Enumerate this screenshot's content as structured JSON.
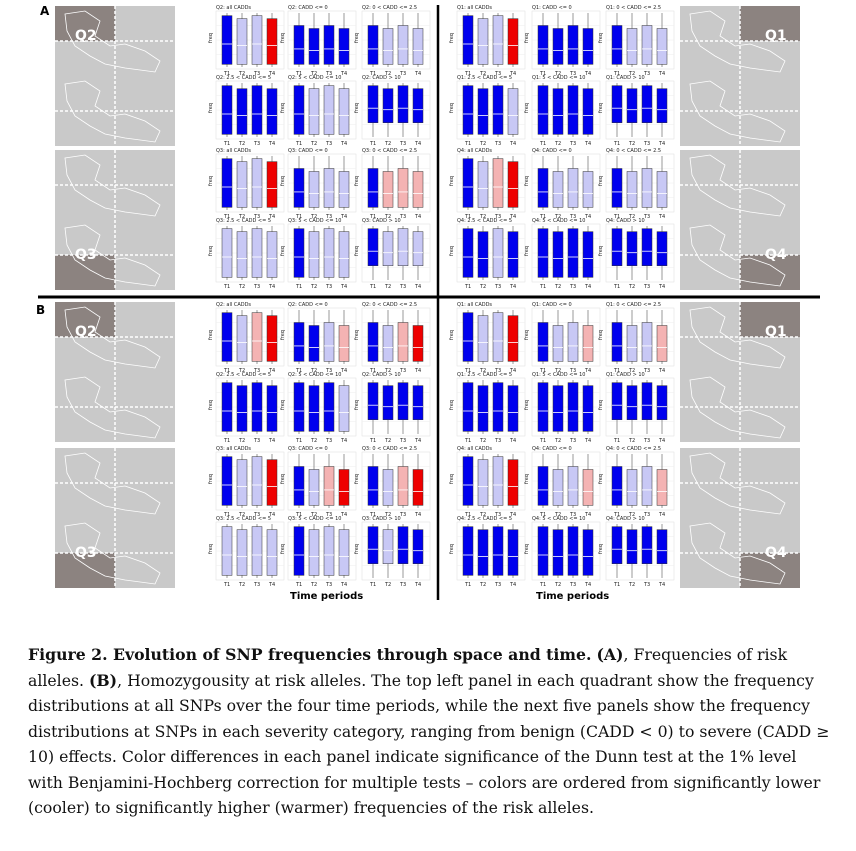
{
  "figure": {
    "panel_labels": [
      "A",
      "B"
    ],
    "quadrants": [
      "Q1",
      "Q2",
      "Q3",
      "Q4"
    ],
    "x_axis_label": "Time periods",
    "tick_labels": [
      "T1",
      "T2",
      "T3",
      "T4"
    ],
    "y_axis_label": "freq",
    "categories": [
      "all CADDs",
      "CADD <= 0",
      "0 < CADD <= 2.5",
      "2.5 < CADD <= 5",
      "5 < CADD <= 10",
      "CADD > 10"
    ],
    "colors": {
      "sig_low": "#0000ee",
      "nonsig": "#c8c8f5",
      "sig_high_light": "#f4b3b3",
      "sig_high": "#ee0000",
      "map_bg": "#c9c9c9",
      "map_sel": "#8c8380",
      "map_dark": "#222222"
    }
  },
  "chart_data": [
    {
      "type": "boxplot",
      "panel": "A",
      "description_of_colors": "per quadrant, panels ordered as categories",
      "Q2": [
        [
          "b",
          "n",
          "n",
          "r"
        ],
        [
          "b",
          "b",
          "b",
          "b"
        ],
        [
          "b",
          "n",
          "n",
          "n"
        ],
        [
          "b",
          "b",
          "b",
          "b"
        ],
        [
          "b",
          "n",
          "n",
          "n"
        ],
        [
          "b",
          "b",
          "b",
          "b"
        ]
      ],
      "Q1": [
        [
          "b",
          "n",
          "n",
          "r"
        ],
        [
          "b",
          "b",
          "b",
          "b"
        ],
        [
          "b",
          "n",
          "n",
          "n"
        ],
        [
          "b",
          "b",
          "b",
          "n"
        ],
        [
          "b",
          "b",
          "b",
          "b"
        ],
        [
          "b",
          "b",
          "b",
          "b"
        ]
      ],
      "Q3": [
        [
          "b",
          "n",
          "n",
          "r"
        ],
        [
          "b",
          "n",
          "n",
          "n"
        ],
        [
          "b",
          "p",
          "p",
          "p"
        ],
        [
          "n",
          "n",
          "n",
          "n"
        ],
        [
          "b",
          "n",
          "n",
          "n"
        ],
        [
          "b",
          "n",
          "n",
          "n"
        ]
      ],
      "Q4": [
        [
          "b",
          "n",
          "p",
          "r"
        ],
        [
          "b",
          "n",
          "n",
          "n"
        ],
        [
          "b",
          "n",
          "n",
          "n"
        ],
        [
          "b",
          "b",
          "n",
          "b"
        ],
        [
          "b",
          "b",
          "b",
          "b"
        ],
        [
          "b",
          "b",
          "b",
          "b"
        ]
      ]
    },
    {
      "type": "boxplot",
      "panel": "B",
      "Q2": [
        [
          "b",
          "n",
          "p",
          "r"
        ],
        [
          "b",
          "b",
          "n",
          "p"
        ],
        [
          "b",
          "n",
          "p",
          "r"
        ],
        [
          "b",
          "b",
          "b",
          "b"
        ],
        [
          "b",
          "b",
          "b",
          "n"
        ],
        [
          "b",
          "b",
          "b",
          "b"
        ]
      ],
      "Q1": [
        [
          "b",
          "n",
          "n",
          "r"
        ],
        [
          "b",
          "n",
          "n",
          "p"
        ],
        [
          "b",
          "n",
          "n",
          "p"
        ],
        [
          "b",
          "b",
          "b",
          "b"
        ],
        [
          "b",
          "b",
          "b",
          "b"
        ],
        [
          "b",
          "b",
          "b",
          "b"
        ]
      ],
      "Q3": [
        [
          "b",
          "n",
          "n",
          "r"
        ],
        [
          "b",
          "n",
          "p",
          "r"
        ],
        [
          "b",
          "n",
          "p",
          "r"
        ],
        [
          "n",
          "n",
          "n",
          "n"
        ],
        [
          "b",
          "n",
          "n",
          "n"
        ],
        [
          "b",
          "n",
          "b",
          "b"
        ]
      ],
      "Q4": [
        [
          "b",
          "n",
          "n",
          "r"
        ],
        [
          "b",
          "n",
          "n",
          "p"
        ],
        [
          "b",
          "n",
          "n",
          "p"
        ],
        [
          "b",
          "b",
          "b",
          "b"
        ],
        [
          "b",
          "b",
          "b",
          "b"
        ],
        [
          "b",
          "b",
          "b",
          "b"
        ]
      ]
    }
  ],
  "caption": {
    "title": "Figure 2. Evolution of SNP frequencies through space and time.",
    "text_a_label": "(A)",
    "text_a": ", Frequencies of risk alleles. ",
    "text_b_label": "(B)",
    "text_b": ", Homozygousity at risk alleles. The top left panel in each quadrant show the frequency distributions at all SNPs over the four time periods, while the next five panels show the frequency distributions at SNPs in each severity category, ranging from benign (CADD < 0) to severe (CADD ≥ 10) effects. Color differences in each panel indicate significance of the Dunn test at the 1% level with Benjamini-Hochberg correction for multiple tests – colors are ordered from significantly lower (cooler) to significantly higher (warmer) frequencies of the risk alleles."
  }
}
